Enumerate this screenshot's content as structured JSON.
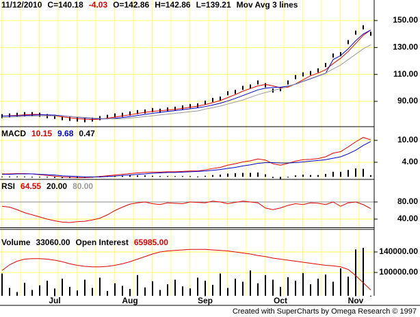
{
  "chart_data": [
    {
      "type": "price",
      "header": [
        {
          "text": "11/12/2010",
          "color": "#000000"
        },
        {
          "text": "C=140.18",
          "color": "#000000"
        },
        {
          "text": "-4.03",
          "color": "#e00000"
        },
        {
          "text": "O=142.86",
          "color": "#000000"
        },
        {
          "text": "H=142.86",
          "color": "#000000"
        },
        {
          "text": "L=139.21",
          "color": "#000000"
        },
        {
          "text": "Mov Avg 3 lines",
          "color": "#000000"
        }
      ],
      "ylim": [
        71.2,
        165.25
      ],
      "yticks": [
        {
          "value": 90,
          "label": "90.00"
        },
        {
          "value": 110,
          "label": "110.00"
        },
        {
          "value": 130,
          "label": "130.00"
        },
        {
          "value": 150,
          "label": "150.00"
        }
      ],
      "series": [
        {
          "color": "#000000",
          "style": "bars",
          "values": [
            79,
            79.5,
            80,
            80.5,
            80.5,
            80,
            79,
            78.5,
            77.5,
            77,
            76.5,
            76,
            76.5,
            77.5,
            78.5,
            79.5,
            80,
            81,
            82,
            82.5,
            83.5,
            83,
            84,
            84.5,
            85.5,
            86.5,
            87,
            89,
            91,
            92,
            96,
            97,
            100,
            101,
            104,
            102,
            98,
            99,
            104,
            108,
            110,
            111,
            113,
            117,
            124,
            125,
            134,
            141,
            145,
            140.18
          ]
        },
        {
          "color": "#e00000",
          "style": "line",
          "values": [
            79,
            79.3,
            79.6,
            80,
            80.3,
            80.3,
            79.8,
            79.2,
            78.5,
            77.8,
            77.2,
            76.7,
            76.5,
            76.8,
            77.5,
            78.3,
            79.2,
            80,
            81,
            81.8,
            82.6,
            83,
            83.5,
            84,
            84.8,
            85.6,
            86.4,
            87.6,
            89,
            90.6,
            92.8,
            95,
            97.5,
            99.5,
            101.5,
            102.5,
            101.5,
            100,
            100.5,
            103,
            106,
            109,
            111,
            113.5,
            118,
            122,
            127,
            133,
            139,
            143
          ]
        },
        {
          "color": "#0000cc",
          "style": "line",
          "values": [
            79,
            79.1,
            79.3,
            79.5,
            79.8,
            80,
            80,
            79.8,
            79.3,
            78.8,
            78.2,
            77.7,
            77.3,
            77,
            77,
            77.4,
            78,
            78.7,
            79.5,
            80.3,
            81.1,
            81.8,
            82.5,
            83.1,
            83.8,
            84.5,
            85.2,
            86.1,
            87.3,
            88.6,
            90.3,
            92.2,
            94.3,
            96.4,
            98.5,
            99.8,
            100.3,
            100.5,
            101.3,
            102.8,
            104.8,
            106.8,
            108.8,
            110.8,
            121,
            124,
            129,
            135,
            140,
            143
          ]
        },
        {
          "color": "#999999",
          "style": "line",
          "values": [
            78,
            78.2,
            78.5,
            78.8,
            79,
            79.2,
            79.3,
            79.3,
            79.1,
            78.8,
            78.4,
            78,
            77.6,
            77.3,
            77.1,
            77,
            77.2,
            77.6,
            78.1,
            78.7,
            79.3,
            79.9,
            80.5,
            81.1,
            81.7,
            82.3,
            82.9,
            84.2,
            85.3,
            86.5,
            88,
            89.5,
            91,
            93,
            95,
            96.5,
            98,
            99.5,
            101,
            103,
            105,
            107,
            109,
            111,
            114,
            117,
            121,
            125,
            129,
            132
          ]
        }
      ]
    },
    {
      "type": "macd",
      "header": [
        {
          "text": "MACD",
          "color": "#000000"
        },
        {
          "text": "10.15",
          "color": "#e00000"
        },
        {
          "text": "9.68",
          "color": "#0000cc"
        },
        {
          "text": "0.47",
          "color": "#000000"
        }
      ],
      "ylim": [
        -0.69,
        13.75
      ],
      "yticks": [
        {
          "value": 4,
          "label": "4.00"
        },
        {
          "value": 10,
          "label": "10.00"
        }
      ],
      "series": [
        {
          "color": "#e00000",
          "style": "line",
          "values": [
            0.8,
            0.8,
            0.9,
            0.9,
            0.8,
            0.6,
            0.4,
            0.2,
            0,
            -0.1,
            -0.2,
            -0.2,
            -0.1,
            0.1,
            0.3,
            0.5,
            0.7,
            0.9,
            1.1,
            1.2,
            1.3,
            1.3,
            1.4,
            1.4,
            1.5,
            1.6,
            1.6,
            1.9,
            2.3,
            2.6,
            3.2,
            3.6,
            4.1,
            4.4,
            4.9,
            4.6,
            3.6,
            3.2,
            3.7,
            4.3,
            4.7,
            4.8,
            5,
            5.5,
            6.5,
            6.9,
            8.2,
            9.6,
            10.8,
            10.15
          ]
        },
        {
          "color": "#0000cc",
          "style": "line",
          "values": [
            0.7,
            0.7,
            0.8,
            0.8,
            0.8,
            0.7,
            0.6,
            0.5,
            0.3,
            0.2,
            0.1,
            0,
            0,
            0,
            0.1,
            0.2,
            0.4,
            0.5,
            0.7,
            0.8,
            1,
            1.1,
            1.2,
            1.2,
            1.3,
            1.4,
            1.5,
            1.6,
            1.8,
            2,
            2.3,
            2.6,
            3,
            3.3,
            3.7,
            3.9,
            3.9,
            3.8,
            3.8,
            3.9,
            4.1,
            4.3,
            4.5,
            4.7,
            5.1,
            5.5,
            6.3,
            7.3,
            8.6,
            9.68
          ]
        },
        {
          "color": "#000000",
          "style": "histogram",
          "values": [
            0.1,
            0.1,
            0.1,
            0.1,
            0,
            -0.1,
            -0.2,
            -0.3,
            -0.3,
            -0.3,
            -0.3,
            -0.2,
            -0.1,
            0.1,
            0.2,
            0.3,
            0.3,
            0.4,
            0.4,
            0.4,
            0.3,
            0.2,
            0.2,
            0.2,
            0.2,
            0.2,
            0.1,
            0.3,
            0.5,
            0.6,
            0.9,
            1,
            1.1,
            1.1,
            1.2,
            0.7,
            -0.3,
            -0.6,
            -0.1,
            0.4,
            0.6,
            0.5,
            0.5,
            0.8,
            1.4,
            1.4,
            1.9,
            2.3,
            2.2,
            0.47
          ]
        }
      ]
    },
    {
      "type": "rsi",
      "header": [
        {
          "text": "RSI",
          "color": "#000000"
        },
        {
          "text": "64.55",
          "color": "#e00000"
        },
        {
          "text": "20.00",
          "color": "#000000"
        },
        {
          "text": "80.00",
          "color": "#999999"
        }
      ],
      "levels": [
        20,
        80
      ],
      "ylim": [
        16,
        132.8
      ],
      "yticks": [
        {
          "value": 40,
          "label": "40.00"
        },
        {
          "value": 80,
          "label": "80.00"
        }
      ],
      "series": [
        {
          "color": "#e00000",
          "style": "line",
          "values": [
            70,
            68,
            62,
            55,
            50,
            45,
            40,
            36,
            33,
            32,
            34,
            35,
            38,
            42,
            50,
            60,
            68,
            75,
            78,
            80,
            76,
            74,
            78,
            77,
            76,
            80,
            79,
            78,
            82,
            80,
            76,
            79,
            82,
            80,
            78,
            66,
            62,
            66,
            72,
            76,
            74,
            78,
            77,
            74,
            80,
            70,
            78,
            80,
            74,
            64.55
          ]
        }
      ]
    },
    {
      "type": "volume",
      "header": [
        {
          "text": "Volume",
          "color": "#000000"
        },
        {
          "text": "33060.00",
          "color": "#000000"
        },
        {
          "text": "Open Interest",
          "color": "#000000"
        },
        {
          "text": "65985.00",
          "color": "#e00000"
        }
      ],
      "categories": [
        null,
        null,
        null,
        null,
        null,
        null,
        null,
        "Jul",
        null,
        null,
        null,
        null,
        null,
        null,
        null,
        null,
        null,
        "Aug",
        null,
        null,
        null,
        null,
        null,
        null,
        null,
        null,
        null,
        "Sep",
        null,
        null,
        null,
        null,
        null,
        null,
        null,
        null,
        null,
        "Oct",
        null,
        null,
        null,
        null,
        null,
        null,
        null,
        null,
        null,
        "Nov",
        null,
        null
      ],
      "ylim": [
        54667,
        177333
      ],
      "yticks": [
        {
          "value": 100000,
          "label": "100000.00"
        },
        {
          "value": 140000,
          "label": "140000.00"
        }
      ],
      "series": [
        {
          "color": "#000000",
          "style": "histogram",
          "values": [
            98000,
            70000,
            62000,
            80000,
            66000,
            75000,
            84000,
            69000,
            88000,
            72000,
            65000,
            86000,
            70000,
            90000,
            64000,
            79000,
            74000,
            68000,
            95000,
            71000,
            83000,
            66000,
            77000,
            86000,
            73000,
            69000,
            90000,
            84000,
            76000,
            98000,
            70000,
            88000,
            82000,
            104000,
            79000,
            95000,
            86000,
            72000,
            91000,
            84000,
            99000,
            77000,
            88000,
            96000,
            82000,
            108000,
            92000,
            145000,
            148000,
            33060
          ]
        },
        {
          "color": "#e00000",
          "style": "line",
          "values": [
            104000,
            115000,
            122000,
            126000,
            127000,
            127000,
            126000,
            124000,
            121000,
            117000,
            114000,
            112000,
            111000,
            111000,
            112000,
            114000,
            117000,
            121000,
            126000,
            131000,
            136000,
            140000,
            142000,
            143000,
            144000,
            145000,
            145000,
            145000,
            144000,
            143000,
            142000,
            140000,
            138000,
            136000,
            133000,
            131000,
            128000,
            126000,
            124000,
            122000,
            120000,
            118000,
            116000,
            114000,
            113000,
            111000,
            106000,
            94000,
            80000,
            65985
          ]
        }
      ]
    }
  ],
  "footer": "Created with SuperCharts by Omega Research © 1997"
}
